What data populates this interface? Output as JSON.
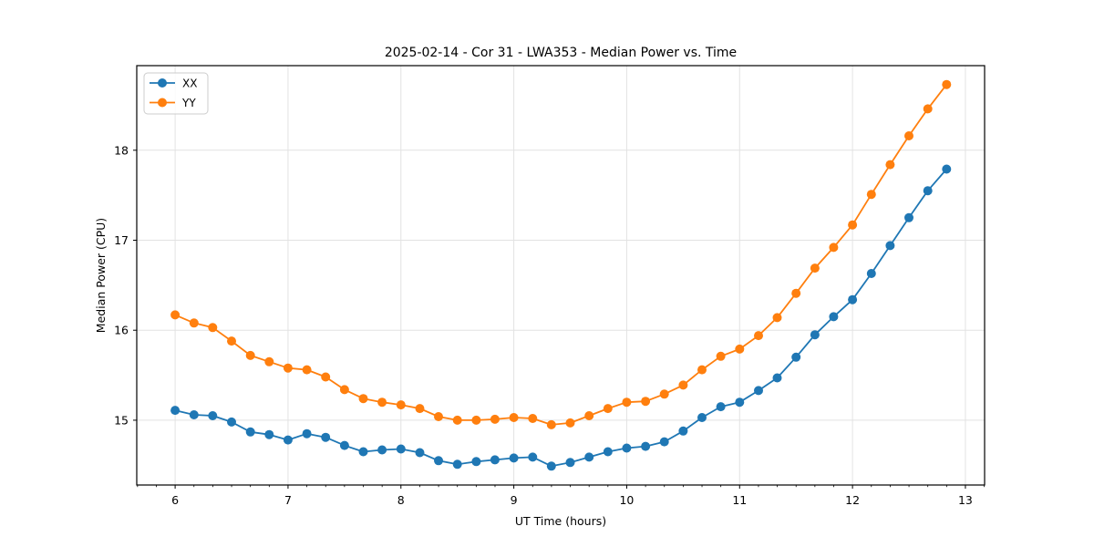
{
  "figure_title": "2025-02-14 - Cor 31 - LWA353 - Median Power vs. Time",
  "chart_data": {
    "type": "line",
    "title": "2025-02-14 - Cor 31 - LWA353 - Median Power vs. Time",
    "xlabel": "UT Time (hours)",
    "ylabel": "Median Power (CPU)",
    "x": [
      6.0,
      6.167,
      6.333,
      6.5,
      6.667,
      6.833,
      7.0,
      7.167,
      7.333,
      7.5,
      7.667,
      7.833,
      8.0,
      8.167,
      8.333,
      8.5,
      8.667,
      8.833,
      9.0,
      9.167,
      9.333,
      9.5,
      9.667,
      9.833,
      10.0,
      10.167,
      10.333,
      10.5,
      10.667,
      10.833,
      11.0,
      11.167,
      11.333,
      11.5,
      11.667,
      11.833,
      12.0,
      12.167,
      12.333,
      12.5,
      12.667,
      12.833
    ],
    "series": [
      {
        "name": "XX",
        "color": "#1f77b4",
        "values": [
          15.11,
          15.06,
          15.05,
          14.98,
          14.87,
          14.84,
          14.78,
          14.85,
          14.81,
          14.72,
          14.65,
          14.67,
          14.68,
          14.64,
          14.55,
          14.51,
          14.54,
          14.56,
          14.58,
          14.59,
          14.49,
          14.53,
          14.59,
          14.65,
          14.69,
          14.71,
          14.76,
          14.88,
          15.03,
          15.15,
          15.2,
          15.33,
          15.47,
          15.7,
          15.95,
          16.15,
          16.34,
          16.63,
          16.94,
          17.25,
          17.55,
          17.79
        ]
      },
      {
        "name": "YY",
        "color": "#ff7f0e",
        "values": [
          16.17,
          16.08,
          16.03,
          15.88,
          15.72,
          15.65,
          15.58,
          15.56,
          15.48,
          15.34,
          15.24,
          15.2,
          15.17,
          15.13,
          15.04,
          15.0,
          15.0,
          15.01,
          15.03,
          15.02,
          14.95,
          14.97,
          15.05,
          15.13,
          15.2,
          15.21,
          15.29,
          15.39,
          15.56,
          15.71,
          15.79,
          15.94,
          16.14,
          16.41,
          16.69,
          16.92,
          17.17,
          17.51,
          17.84,
          18.16,
          18.46,
          18.73
        ]
      }
    ],
    "x_ticks": [
      6,
      7,
      8,
      9,
      10,
      11,
      12,
      13
    ],
    "y_ticks": [
      15,
      16,
      17,
      18
    ],
    "x_minor_step": 0.16667,
    "xlim": [
      5.66,
      13.17
    ],
    "ylim": [
      14.28,
      18.94
    ],
    "grid": true,
    "grid_color": "#e2e2e2",
    "spine_color": "#000000",
    "legend_position": "upper left",
    "marker": "o",
    "marker_radius": 5,
    "line_width": 1.8
  }
}
